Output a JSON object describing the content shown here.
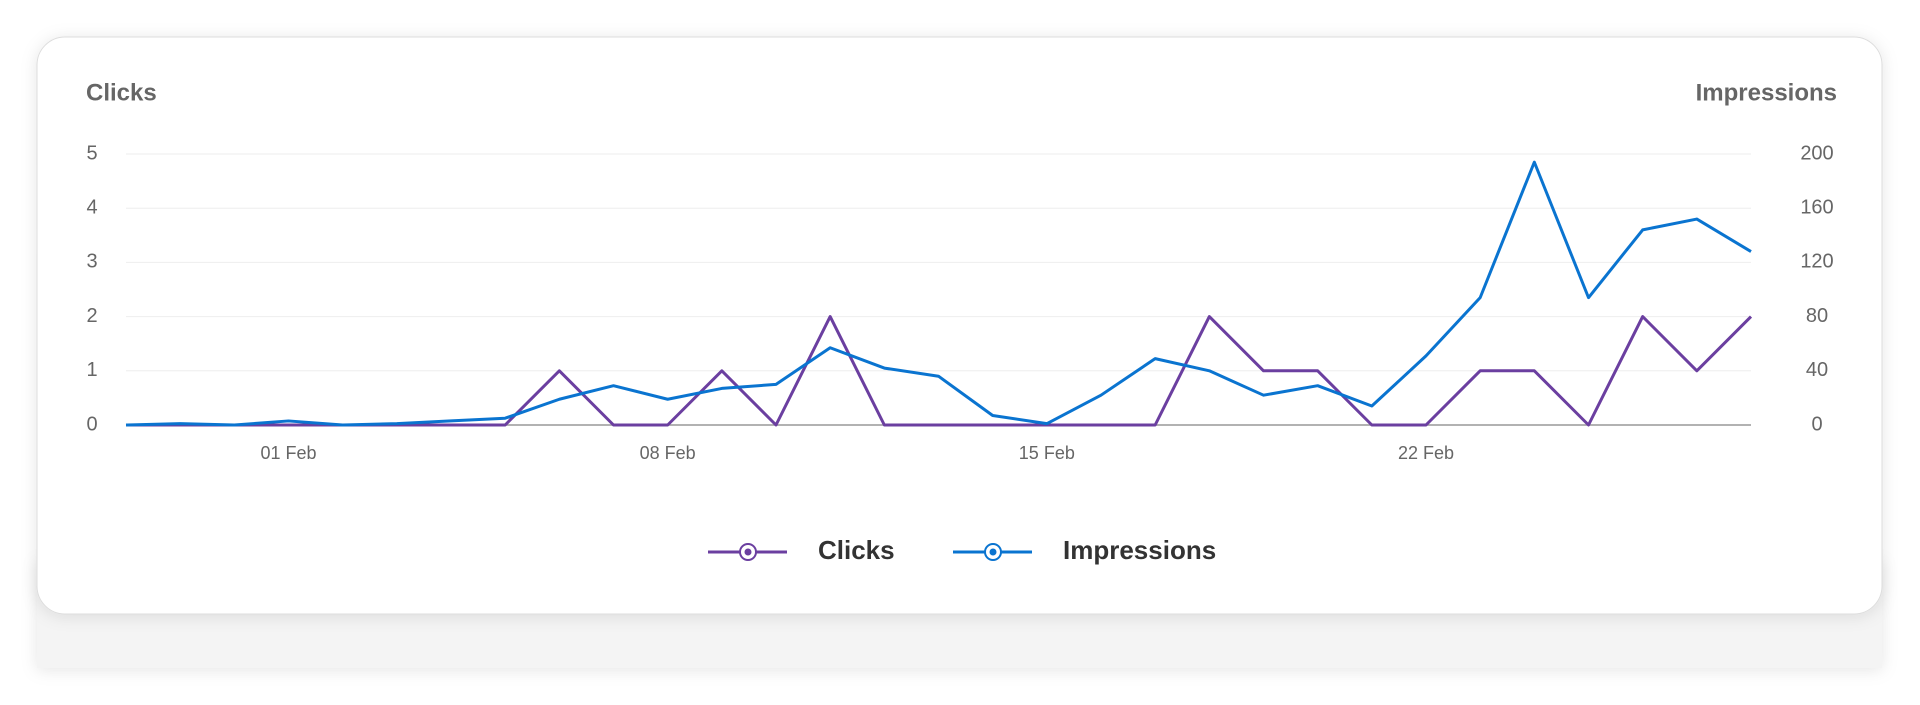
{
  "chart_data": {
    "type": "line",
    "y_label": "Clicks",
    "y2_label": "Impressions",
    "categories": [
      null,
      null,
      null,
      "01 Feb",
      null,
      null,
      null,
      null,
      null,
      null,
      "08 Feb",
      null,
      null,
      null,
      null,
      null,
      null,
      "15 Feb",
      null,
      null,
      null,
      null,
      null,
      null,
      "22 Feb",
      null,
      null,
      null,
      null,
      null,
      null
    ],
    "series": [
      {
        "name": "Clicks",
        "color": "#6b3fa0",
        "axis": "y",
        "values": [
          0,
          0,
          0,
          0,
          0,
          0,
          0,
          0,
          1,
          0,
          0,
          1,
          0,
          2,
          0,
          0,
          0,
          0,
          0,
          0,
          2,
          1,
          1,
          0,
          0,
          1,
          1,
          0,
          2,
          1,
          2
        ]
      },
      {
        "name": "Impressions",
        "color": "#0a74d0",
        "axis": "y2",
        "values": [
          0,
          1,
          0,
          3,
          0,
          1,
          3,
          5,
          19,
          29,
          19,
          27,
          30,
          57,
          42,
          36,
          7,
          1,
          22,
          49,
          40,
          22,
          29,
          14,
          51,
          94,
          194,
          94,
          144,
          152,
          128
        ]
      }
    ],
    "ylim": [
      0,
      5
    ],
    "yticks": [
      0,
      1,
      2,
      3,
      4,
      5
    ],
    "y2lim": [
      0,
      200
    ],
    "y2ticks": [
      0,
      40,
      80,
      120,
      160,
      200
    ],
    "grid": true,
    "legend": "bottom"
  }
}
